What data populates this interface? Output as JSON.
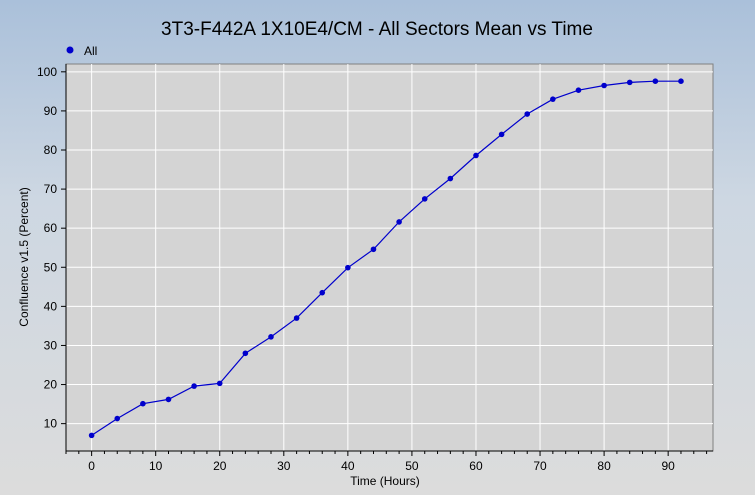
{
  "chart_data": {
    "type": "line",
    "title": "3T3-F442A  1X10E4/CM - All Sectors Mean vs Time",
    "xlabel": "Time (Hours)",
    "ylabel": "Confluence v1.5 (Percent)",
    "xlim": [
      -4,
      97
    ],
    "ylim": [
      3,
      102
    ],
    "xticks": [
      0,
      10,
      20,
      30,
      40,
      50,
      60,
      70,
      80,
      90
    ],
    "yticks": [
      10,
      20,
      30,
      40,
      50,
      60,
      70,
      80,
      90,
      100
    ],
    "grid": true,
    "legend_position": "top-left",
    "series": [
      {
        "name": "All",
        "color": "#0000cc",
        "x": [
          0,
          4,
          8,
          12,
          16,
          20,
          24,
          28,
          32,
          36,
          40,
          44,
          48,
          52,
          56,
          60,
          64,
          68,
          72,
          76,
          80,
          84,
          88,
          92
        ],
        "y": [
          7.0,
          11.3,
          15.1,
          16.2,
          19.6,
          20.3,
          28.0,
          32.2,
          37.0,
          43.5,
          49.9,
          54.6,
          61.6,
          67.5,
          72.7,
          78.6,
          84.0,
          89.2,
          93.0,
          95.3,
          96.5,
          97.3,
          97.6,
          97.6
        ]
      }
    ]
  }
}
